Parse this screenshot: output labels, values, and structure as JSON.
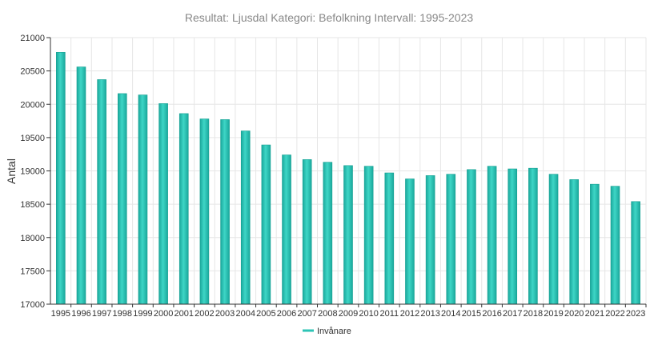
{
  "chart_data": {
    "type": "bar",
    "title": "Resultat: Ljusdal Kategori: Befolkning Intervall: 1995-2023",
    "xlabel": "",
    "ylabel": "Antal",
    "ylim": [
      17000,
      21000
    ],
    "yticks": [
      17000,
      17500,
      18000,
      18500,
      19000,
      19500,
      20000,
      20500,
      21000
    ],
    "grid": true,
    "legend_position": "bottom",
    "categories": [
      "1995",
      "1996",
      "1997",
      "1998",
      "1999",
      "2000",
      "2001",
      "2002",
      "2003",
      "2004",
      "2005",
      "2006",
      "2007",
      "2008",
      "2009",
      "2010",
      "2011",
      "2012",
      "2013",
      "2014",
      "2015",
      "2016",
      "2017",
      "2018",
      "2019",
      "2020",
      "2021",
      "2022",
      "2023"
    ],
    "series": [
      {
        "name": "Invånare",
        "color": "#2ec4b6",
        "values": [
          20780,
          20560,
          20370,
          20160,
          20140,
          20010,
          19860,
          19780,
          19770,
          19600,
          19390,
          19240,
          19170,
          19130,
          19080,
          19070,
          18970,
          18880,
          18930,
          18950,
          19020,
          19070,
          19030,
          19040,
          18950,
          18870,
          18800,
          18770,
          18540
        ]
      }
    ]
  }
}
